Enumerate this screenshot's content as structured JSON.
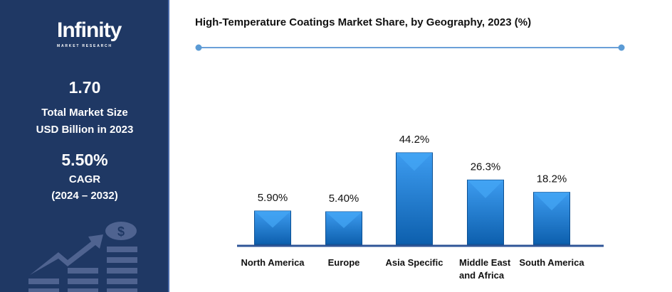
{
  "sidebar": {
    "logo_text": "Infinity",
    "logo_subtext": "MARKET RESEARCH",
    "market_size_value": "1.70",
    "market_size_label_1": "Total Market Size",
    "market_size_label_2": "USD Billion in 2023",
    "cagr_value": "5.50%",
    "cagr_label": "CAGR",
    "cagr_period": "(2024 – 2032)",
    "icon": "growth-chart-dollar-icon",
    "background": "#1f3864"
  },
  "chart_data": {
    "type": "bar",
    "title": "High-Temperature Coatings Market Share, by Geography, 2023 (%)",
    "categories": [
      "North America",
      "Europe",
      "Asia Specific",
      "Middle East and Africa",
      "South America"
    ],
    "values": [
      5.9,
      5.4,
      44.2,
      26.3,
      18.2
    ],
    "data_labels": [
      "5.90%",
      "5.40%",
      "44.2%",
      "26.3%",
      "18.2%"
    ],
    "bar_color": "#1a75c9",
    "grid": false,
    "legend": "none"
  }
}
